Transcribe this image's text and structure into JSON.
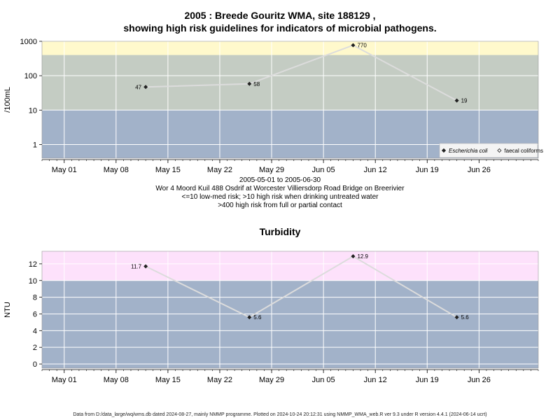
{
  "titles": {
    "line1": "2005 : Breede Gouritz WMA, site 188129 ,",
    "line2": "showing high risk guidelines for indicators of microbial pathogens."
  },
  "captions": {
    "date_range": "2005-05-01 to 2005-06-30",
    "site": "Wor 4 Moord Kuil 488 Osdrif at Worcester Villiersdorp Road Bridge on Breerivier",
    "guideline1": "<=10 low-med risk; >10 high risk when drinking untreated water",
    "guideline2": ">400 high risk from full or partial contact"
  },
  "footer": "Data from D:/data_large/wq/wms.db dated 2024-08-27, mainly NMMP programme. Plotted on 2024-10-24 20:12:31 using NMMP_WMA_web.R ver 9.3 under R version 4.4.1 (2024-06-14 ucrt)",
  "colors": {
    "low_band": "#a2b2c9",
    "med_band": "#c4ccc3",
    "high_band": "#fff9cc",
    "turb_high_band": "#fde1fb",
    "line": "#dcdcdc",
    "grid": "#ffffff",
    "point": "#222222"
  },
  "chart_data": [
    {
      "type": "line",
      "title": "",
      "ylabel": "/100mL",
      "yscale": "log",
      "ylim": [
        0.4,
        1000
      ],
      "yticks": [
        1000,
        100,
        10,
        1
      ],
      "ytick_labels": [
        "1000",
        "100",
        "10",
        "1"
      ],
      "bands": [
        {
          "from": 0.4,
          "to": 10,
          "color_key": "low_band"
        },
        {
          "from": 10,
          "to": 400,
          "color_key": "med_band"
        },
        {
          "from": 400,
          "to": 1000,
          "color_key": "high_band"
        }
      ],
      "xlim": [
        "2005-04-28",
        "2005-07-04"
      ],
      "xticks": [
        "2005-05-01",
        "2005-05-08",
        "2005-05-15",
        "2005-05-22",
        "2005-05-29",
        "2005-06-05",
        "2005-06-12",
        "2005-06-19",
        "2005-06-26"
      ],
      "xtick_labels": [
        "May 01",
        "May 08",
        "May 15",
        "May 22",
        "May 29",
        "Jun 05",
        "Jun 12",
        "Jun 19",
        "Jun 26"
      ],
      "series": [
        {
          "name": "Escherichia coli",
          "marker": "filled",
          "points": [
            {
              "x": "2005-05-12",
              "y": 47,
              "label": "47",
              "label_side": "left"
            },
            {
              "x": "2005-05-26",
              "y": 58,
              "label": "58",
              "label_side": "right"
            },
            {
              "x": "2005-06-09",
              "y": 770,
              "label": "770",
              "label_side": "right"
            },
            {
              "x": "2005-06-23",
              "y": 19,
              "label": "19",
              "label_side": "right"
            }
          ]
        }
      ],
      "legend": {
        "placement": "bottom-right",
        "items": [
          {
            "label": "Escherichia coli",
            "marker": "filled",
            "italic": true
          },
          {
            "label": "faecal coliforms",
            "marker": "open",
            "italic": false
          }
        ]
      }
    },
    {
      "type": "line",
      "title": "Turbidity",
      "ylabel": "NTU",
      "yscale": "linear",
      "ylim": [
        -0.5,
        13.5
      ],
      "yticks": [
        0,
        2,
        4,
        6,
        8,
        10,
        12
      ],
      "ytick_labels": [
        "0",
        "2",
        "4",
        "6",
        "8",
        "10",
        "12"
      ],
      "bands": [
        {
          "from": -0.5,
          "to": 10,
          "color_key": "low_band"
        },
        {
          "from": 10,
          "to": 13.5,
          "color_key": "turb_high_band"
        }
      ],
      "xlim": [
        "2005-04-28",
        "2005-07-04"
      ],
      "xticks": [
        "2005-05-01",
        "2005-05-08",
        "2005-05-15",
        "2005-05-22",
        "2005-05-29",
        "2005-06-05",
        "2005-06-12",
        "2005-06-19",
        "2005-06-26"
      ],
      "xtick_labels": [
        "May 01",
        "May 08",
        "May 15",
        "May 22",
        "May 29",
        "Jun 05",
        "Jun 12",
        "Jun 19",
        "Jun 26"
      ],
      "series": [
        {
          "marker": "filled",
          "points": [
            {
              "x": "2005-05-12",
              "y": 11.7,
              "label": "11.7",
              "label_side": "left"
            },
            {
              "x": "2005-05-26",
              "y": 5.6,
              "label": "5.6",
              "label_side": "right"
            },
            {
              "x": "2005-06-09",
              "y": 12.9,
              "label": "12.9",
              "label_side": "right"
            },
            {
              "x": "2005-06-23",
              "y": 5.6,
              "label": "5.6",
              "label_side": "right"
            }
          ]
        }
      ]
    }
  ]
}
